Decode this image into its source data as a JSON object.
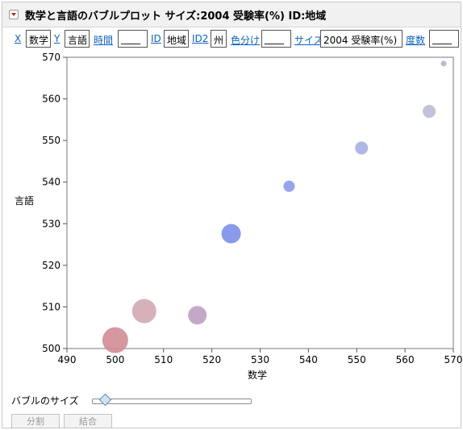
{
  "title": "数学と言語のバブルプロット サイズ:2004 受験率(%)  ID:地域",
  "roles": {
    "x_label": "X",
    "x_value": "数学",
    "y_label": "Y",
    "y_value": "言語",
    "time_label": "時間",
    "time_value": "____",
    "id_label": "ID",
    "id_value": "地域",
    "id2_label": "ID2",
    "id2_value": "州",
    "color_label": "色分け",
    "color_value": "____",
    "size_label": "サイズ",
    "size_value": "2004 受験率(%)",
    "freq_label": "度数",
    "freq_value": "____"
  },
  "chart_data": {
    "type": "scatter",
    "xlabel": "数学",
    "ylabel": "言語",
    "xlim": [
      490,
      570
    ],
    "ylim": [
      500,
      570
    ],
    "xticks": [
      490,
      500,
      510,
      520,
      530,
      540,
      550,
      560,
      570
    ],
    "yticks": [
      500,
      510,
      520,
      530,
      540,
      550,
      560,
      570
    ],
    "points": [
      {
        "x": 500,
        "y": 502,
        "size": 16,
        "color": "#d28c95"
      },
      {
        "x": 506,
        "y": 509,
        "size": 15,
        "color": "#d3a9b2"
      },
      {
        "x": 517,
        "y": 508,
        "size": 11.5,
        "color": "#bca0c1"
      },
      {
        "x": 524,
        "y": 527.6,
        "size": 12,
        "color": "#7c8fe8"
      },
      {
        "x": 536,
        "y": 539,
        "size": 7,
        "color": "#8a9cea"
      },
      {
        "x": 551,
        "y": 548.2,
        "size": 8,
        "color": "#a6afe6"
      },
      {
        "x": 565,
        "y": 557,
        "size": 8,
        "color": "#bbbcd3"
      },
      {
        "x": 568,
        "y": 568.5,
        "size": 3.5,
        "color": "#b0b3d7"
      }
    ]
  },
  "controls": {
    "bubble_size_label": "バブルのサイズ",
    "bubble_size_fraction": 0.08,
    "split_label": "分割",
    "combine_label": "結合"
  }
}
